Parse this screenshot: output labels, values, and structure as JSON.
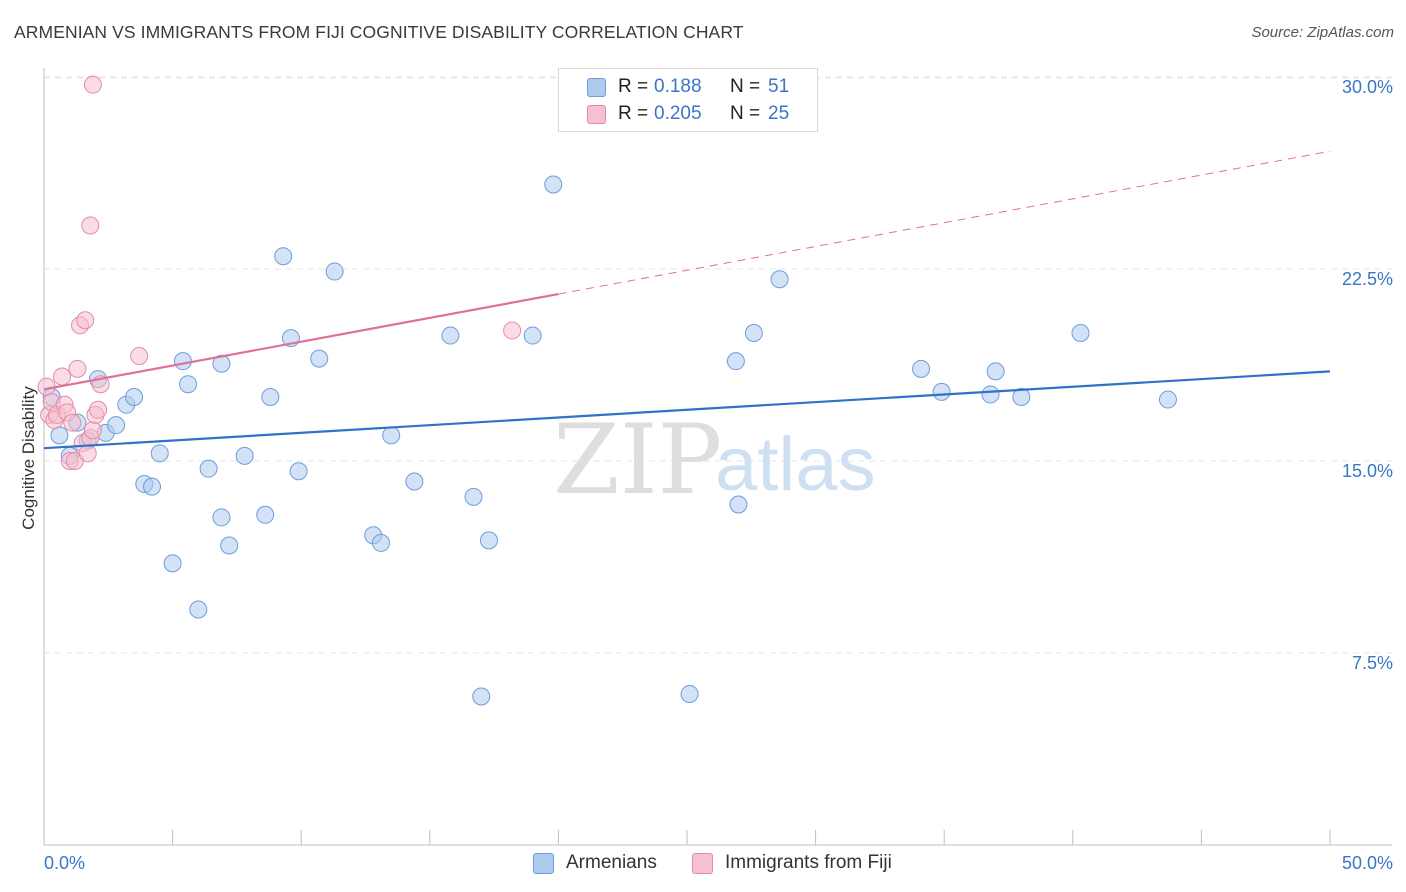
{
  "title": "ARMENIAN VS IMMIGRANTS FROM FIJI COGNITIVE DISABILITY CORRELATION CHART",
  "source": "Source: ZipAtlas.com",
  "watermark": {
    "zip": "ZIP",
    "atlas": "atlas"
  },
  "legend": {
    "r_label": "R =",
    "n_label": "N =",
    "rows": [
      {
        "r": "0.188",
        "n": "51",
        "color": "#aecbef",
        "border": "#6c9fd9"
      },
      {
        "r": "0.205",
        "n": "25",
        "color": "#f6c0d0",
        "border": "#e58aa8"
      }
    ]
  },
  "colors": {
    "armenians_fill": "#aecbef",
    "armenians_stroke": "#6c9fd9",
    "armenians_line": "#2f72c8",
    "fiji_fill": "#f6c0d0",
    "fiji_stroke": "#e58aa8",
    "fiji_line": "#e0709a",
    "tick_label": "#3a76c4",
    "grid": "#e6e6e6"
  },
  "chart_data": {
    "type": "scatter",
    "title": "ARMENIAN VS IMMIGRANTS FROM FIJI COGNITIVE DISABILITY CORRELATION CHART",
    "xlabel": "",
    "ylabel": "Cognitive Disability",
    "xlim": [
      0,
      50
    ],
    "ylim": [
      0,
      31
    ],
    "x_tick_labels": [
      "0.0%",
      "50.0%"
    ],
    "y_ticks": [
      7.5,
      15.0,
      22.5,
      30.0
    ],
    "y_tick_labels": [
      "7.5%",
      "15.0%",
      "22.5%",
      "30.0%"
    ],
    "grid": true,
    "legend_position": "top-center",
    "series": [
      {
        "name": "Armenians",
        "r": 0.188,
        "n": 51,
        "trend": {
          "x": [
            0,
            50
          ],
          "y": [
            15.5,
            18.5
          ],
          "dashed_after": null
        },
        "points": [
          [
            0.3,
            17.5
          ],
          [
            0.6,
            16.0
          ],
          [
            1.0,
            15.2
          ],
          [
            1.3,
            16.5
          ],
          [
            1.7,
            15.8
          ],
          [
            2.1,
            18.2
          ],
          [
            2.4,
            16.1
          ],
          [
            2.8,
            16.4
          ],
          [
            3.2,
            17.2
          ],
          [
            3.5,
            17.5
          ],
          [
            3.9,
            14.1
          ],
          [
            4.2,
            14.0
          ],
          [
            4.5,
            15.3
          ],
          [
            5.0,
            11.0
          ],
          [
            5.4,
            18.9
          ],
          [
            5.6,
            18.0
          ],
          [
            6.0,
            9.2
          ],
          [
            6.4,
            14.7
          ],
          [
            6.9,
            12.8
          ],
          [
            6.9,
            18.8
          ],
          [
            7.2,
            11.7
          ],
          [
            7.8,
            15.2
          ],
          [
            8.6,
            12.9
          ],
          [
            8.8,
            17.5
          ],
          [
            9.3,
            23.0
          ],
          [
            9.6,
            19.8
          ],
          [
            9.9,
            14.6
          ],
          [
            10.7,
            19.0
          ],
          [
            11.3,
            22.4
          ],
          [
            12.8,
            12.1
          ],
          [
            13.1,
            11.8
          ],
          [
            13.5,
            16.0
          ],
          [
            14.4,
            14.2
          ],
          [
            15.8,
            19.9
          ],
          [
            16.7,
            13.6
          ],
          [
            17.0,
            5.8
          ],
          [
            17.3,
            11.9
          ],
          [
            19.0,
            19.9
          ],
          [
            19.8,
            25.8
          ],
          [
            25.1,
            5.9
          ],
          [
            26.9,
            18.9
          ],
          [
            27.0,
            13.3
          ],
          [
            27.6,
            20.0
          ],
          [
            28.6,
            22.1
          ],
          [
            34.1,
            18.6
          ],
          [
            34.9,
            17.7
          ],
          [
            36.8,
            17.6
          ],
          [
            37.0,
            18.5
          ],
          [
            38.0,
            17.5
          ],
          [
            40.3,
            20.0
          ],
          [
            43.7,
            17.4
          ]
        ]
      },
      {
        "name": "Immigrants from Fiji",
        "r": 0.205,
        "n": 25,
        "trend": {
          "x": [
            0,
            50
          ],
          "y": [
            17.8,
            27.1
          ],
          "dashed_after": 20.0
        },
        "points": [
          [
            0.1,
            17.9
          ],
          [
            0.2,
            16.8
          ],
          [
            0.3,
            17.3
          ],
          [
            0.4,
            16.6
          ],
          [
            0.5,
            16.8
          ],
          [
            0.7,
            18.3
          ],
          [
            0.8,
            17.2
          ],
          [
            0.9,
            16.9
          ],
          [
            1.0,
            15.0
          ],
          [
            1.1,
            16.5
          ],
          [
            1.2,
            15.0
          ],
          [
            1.3,
            18.6
          ],
          [
            1.4,
            20.3
          ],
          [
            1.5,
            15.7
          ],
          [
            1.6,
            20.5
          ],
          [
            1.7,
            15.3
          ],
          [
            1.8,
            15.9
          ],
          [
            1.9,
            16.2
          ],
          [
            2.0,
            16.8
          ],
          [
            2.1,
            17.0
          ],
          [
            2.2,
            18.0
          ],
          [
            1.8,
            24.2
          ],
          [
            1.9,
            29.7
          ],
          [
            3.7,
            19.1
          ],
          [
            18.2,
            20.1
          ]
        ]
      }
    ]
  },
  "bottom_legend": [
    {
      "label": "Armenians"
    },
    {
      "label": "Immigrants from Fiji"
    }
  ]
}
